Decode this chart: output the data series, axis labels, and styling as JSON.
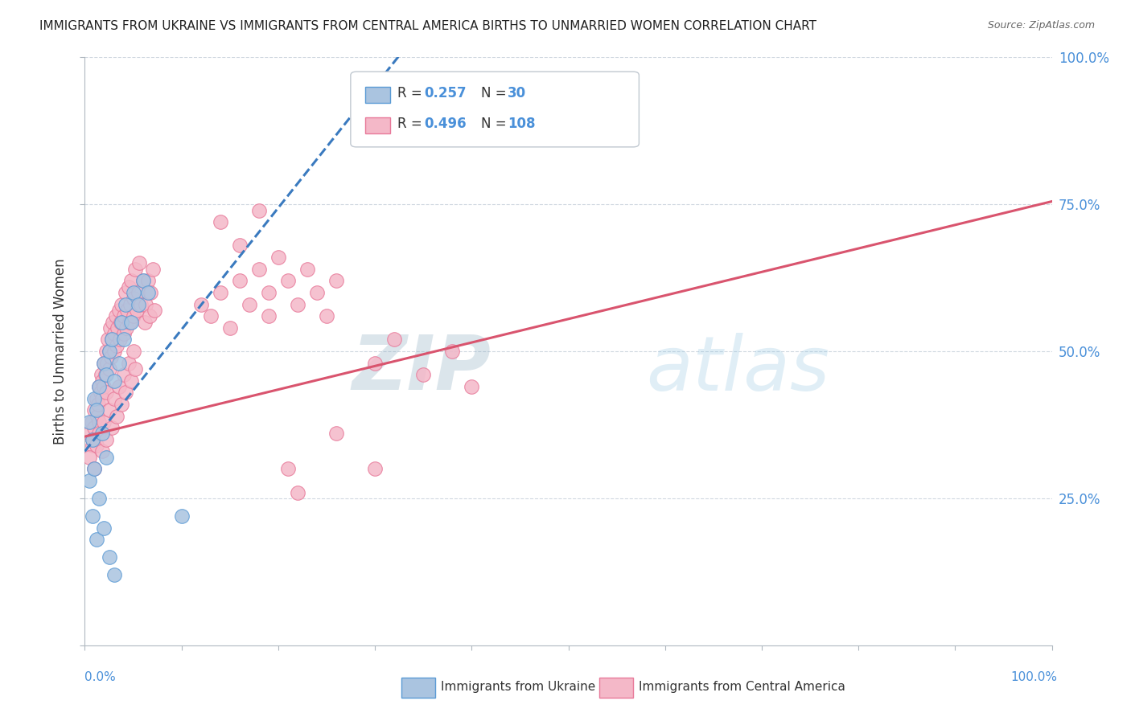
{
  "title": "IMMIGRANTS FROM UKRAINE VS IMMIGRANTS FROM CENTRAL AMERICA BIRTHS TO UNMARRIED WOMEN CORRELATION CHART",
  "source": "Source: ZipAtlas.com",
  "xlabel_ukraine": "Immigrants from Ukraine",
  "xlabel_central": "Immigrants from Central America",
  "ylabel": "Births to Unmarried Women",
  "r_ukraine": 0.257,
  "n_ukraine": 30,
  "r_central": 0.496,
  "n_central": 108,
  "color_ukraine_fill": "#aac4e0",
  "color_ukraine_edge": "#5b9bd5",
  "color_central_fill": "#f4b8c8",
  "color_central_edge": "#e87a9a",
  "color_ukraine_line": "#3a7abf",
  "color_central_line": "#d9546e",
  "watermark_color": "#c8d8e8",
  "watermark_text": "ZIPatlas",
  "grid_color": "#d0d8e0",
  "spine_color": "#b0b8c0",
  "axis_label_color": "#4a90d9",
  "tick_label_color": "#4a90d9",
  "title_color": "#222222",
  "source_color": "#666666",
  "legend_border_color": "#c0c8d0",
  "ukraine_points": [
    [
      0.005,
      0.38
    ],
    [
      0.008,
      0.35
    ],
    [
      0.01,
      0.42
    ],
    [
      0.012,
      0.4
    ],
    [
      0.015,
      0.44
    ],
    [
      0.018,
      0.36
    ],
    [
      0.02,
      0.48
    ],
    [
      0.022,
      0.46
    ],
    [
      0.025,
      0.5
    ],
    [
      0.028,
      0.52
    ],
    [
      0.03,
      0.45
    ],
    [
      0.035,
      0.48
    ],
    [
      0.038,
      0.55
    ],
    [
      0.04,
      0.52
    ],
    [
      0.042,
      0.58
    ],
    [
      0.048,
      0.55
    ],
    [
      0.05,
      0.6
    ],
    [
      0.055,
      0.58
    ],
    [
      0.06,
      0.62
    ],
    [
      0.065,
      0.6
    ],
    [
      0.005,
      0.28
    ],
    [
      0.008,
      0.22
    ],
    [
      0.01,
      0.3
    ],
    [
      0.012,
      0.18
    ],
    [
      0.015,
      0.25
    ],
    [
      0.02,
      0.2
    ],
    [
      0.022,
      0.32
    ],
    [
      0.025,
      0.15
    ],
    [
      0.03,
      0.12
    ],
    [
      0.1,
      0.22
    ]
  ],
  "central_points": [
    [
      0.005,
      0.36
    ],
    [
      0.007,
      0.38
    ],
    [
      0.008,
      0.34
    ],
    [
      0.01,
      0.4
    ],
    [
      0.01,
      0.37
    ],
    [
      0.012,
      0.42
    ],
    [
      0.013,
      0.39
    ],
    [
      0.014,
      0.41
    ],
    [
      0.015,
      0.44
    ],
    [
      0.015,
      0.38
    ],
    [
      0.016,
      0.43
    ],
    [
      0.017,
      0.46
    ],
    [
      0.018,
      0.42
    ],
    [
      0.018,
      0.45
    ],
    [
      0.02,
      0.48
    ],
    [
      0.02,
      0.44
    ],
    [
      0.021,
      0.46
    ],
    [
      0.022,
      0.5
    ],
    [
      0.022,
      0.43
    ],
    [
      0.023,
      0.48
    ],
    [
      0.024,
      0.52
    ],
    [
      0.025,
      0.47
    ],
    [
      0.025,
      0.5
    ],
    [
      0.026,
      0.54
    ],
    [
      0.027,
      0.49
    ],
    [
      0.028,
      0.52
    ],
    [
      0.029,
      0.55
    ],
    [
      0.03,
      0.5
    ],
    [
      0.03,
      0.53
    ],
    [
      0.032,
      0.56
    ],
    [
      0.033,
      0.51
    ],
    [
      0.034,
      0.54
    ],
    [
      0.035,
      0.57
    ],
    [
      0.036,
      0.52
    ],
    [
      0.037,
      0.55
    ],
    [
      0.038,
      0.58
    ],
    [
      0.04,
      0.53
    ],
    [
      0.04,
      0.56
    ],
    [
      0.042,
      0.6
    ],
    [
      0.043,
      0.54
    ],
    [
      0.044,
      0.57
    ],
    [
      0.045,
      0.61
    ],
    [
      0.046,
      0.55
    ],
    [
      0.047,
      0.58
    ],
    [
      0.048,
      0.62
    ],
    [
      0.05,
      0.56
    ],
    [
      0.05,
      0.59
    ],
    [
      0.052,
      0.64
    ],
    [
      0.054,
      0.57
    ],
    [
      0.055,
      0.6
    ],
    [
      0.056,
      0.65
    ],
    [
      0.058,
      0.58
    ],
    [
      0.06,
      0.62
    ],
    [
      0.062,
      0.55
    ],
    [
      0.063,
      0.58
    ],
    [
      0.065,
      0.62
    ],
    [
      0.067,
      0.56
    ],
    [
      0.068,
      0.6
    ],
    [
      0.07,
      0.64
    ],
    [
      0.072,
      0.57
    ],
    [
      0.005,
      0.32
    ],
    [
      0.008,
      0.35
    ],
    [
      0.01,
      0.3
    ],
    [
      0.012,
      0.34
    ],
    [
      0.015,
      0.36
    ],
    [
      0.018,
      0.33
    ],
    [
      0.02,
      0.38
    ],
    [
      0.022,
      0.35
    ],
    [
      0.025,
      0.4
    ],
    [
      0.028,
      0.37
    ],
    [
      0.03,
      0.42
    ],
    [
      0.033,
      0.39
    ],
    [
      0.035,
      0.44
    ],
    [
      0.038,
      0.41
    ],
    [
      0.04,
      0.46
    ],
    [
      0.042,
      0.43
    ],
    [
      0.045,
      0.48
    ],
    [
      0.048,
      0.45
    ],
    [
      0.05,
      0.5
    ],
    [
      0.052,
      0.47
    ],
    [
      0.12,
      0.58
    ],
    [
      0.13,
      0.56
    ],
    [
      0.14,
      0.6
    ],
    [
      0.15,
      0.54
    ],
    [
      0.16,
      0.62
    ],
    [
      0.17,
      0.58
    ],
    [
      0.18,
      0.64
    ],
    [
      0.19,
      0.6
    ],
    [
      0.2,
      0.66
    ],
    [
      0.21,
      0.62
    ],
    [
      0.22,
      0.58
    ],
    [
      0.23,
      0.64
    ],
    [
      0.24,
      0.6
    ],
    [
      0.25,
      0.56
    ],
    [
      0.26,
      0.62
    ],
    [
      0.3,
      0.48
    ],
    [
      0.32,
      0.52
    ],
    [
      0.35,
      0.46
    ],
    [
      0.38,
      0.5
    ],
    [
      0.4,
      0.44
    ],
    [
      0.14,
      0.72
    ],
    [
      0.16,
      0.68
    ],
    [
      0.18,
      0.74
    ],
    [
      0.19,
      0.56
    ],
    [
      0.21,
      0.3
    ],
    [
      0.22,
      0.26
    ],
    [
      0.26,
      0.36
    ],
    [
      0.3,
      0.3
    ]
  ]
}
